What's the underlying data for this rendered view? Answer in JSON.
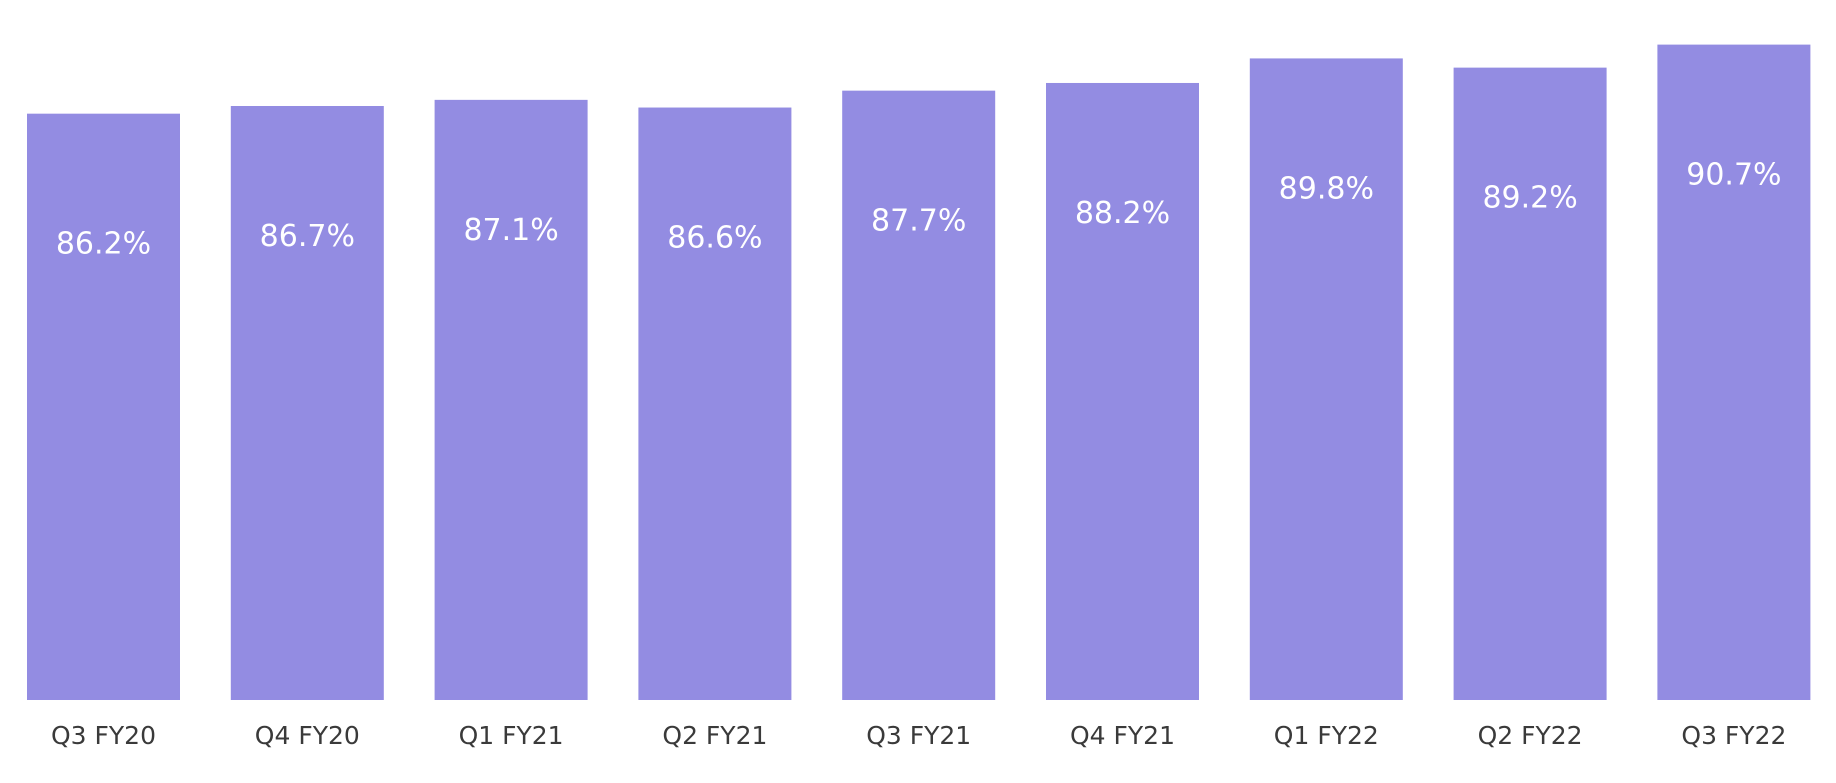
{
  "chart_data": {
    "type": "bar",
    "categories": [
      "Q3 FY20",
      "Q4 FY20",
      "Q1 FY21",
      "Q2 FY21",
      "Q3 FY21",
      "Q4 FY21",
      "Q1 FY22",
      "Q2 FY22",
      "Q3 FY22"
    ],
    "values": [
      86.2,
      86.7,
      87.1,
      86.6,
      87.7,
      88.2,
      89.8,
      89.2,
      90.7
    ],
    "data_labels": [
      "86.2%",
      "86.7%",
      "87.1%",
      "86.6%",
      "87.7%",
      "88.2%",
      "89.8%",
      "89.2%",
      "90.7%"
    ],
    "title": "",
    "xlabel": "",
    "ylabel": "",
    "ylim": [
      48,
      91
    ],
    "grid": false,
    "legend": "none",
    "bar_color": "#938ce2"
  }
}
